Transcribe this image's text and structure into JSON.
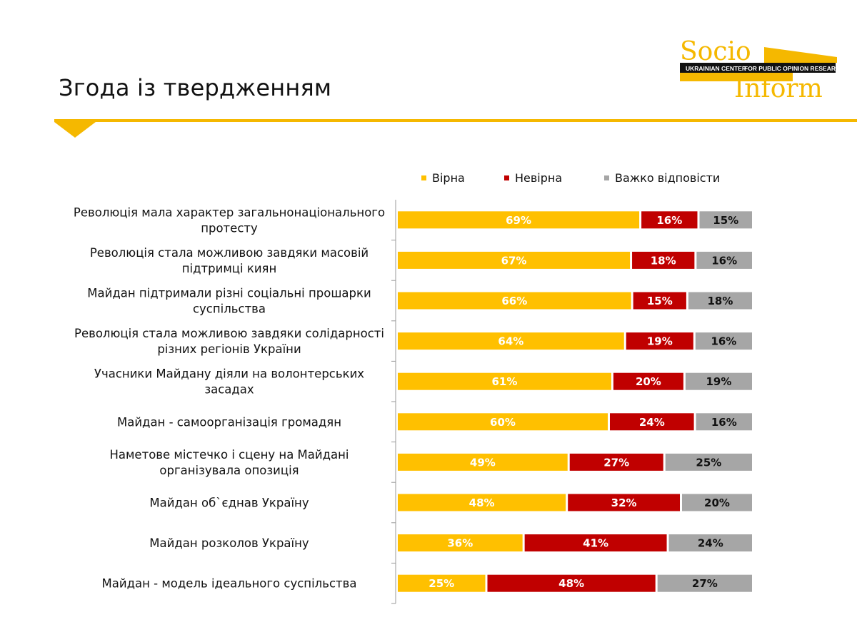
{
  "slide": {
    "title": "Згода із твердженням"
  },
  "logo": {
    "word_top": "Socio",
    "word_bottom": "Inform",
    "tagline_left": "UKRAINIAN CENTER",
    "tagline_right": "FOR PUBLIC OPINION RESEARCH"
  },
  "colors": {
    "accent": "#f5b800",
    "series": [
      "#ffc000",
      "#c00000",
      "#a6a6a6"
    ],
    "value_text": [
      "#ffffff",
      "#ffffff",
      "#111111"
    ]
  },
  "chart_data": {
    "type": "bar",
    "orientation": "horizontal",
    "stacked": true,
    "legend_position": "top",
    "xlim": [
      0,
      100
    ],
    "value_format": "percent",
    "categories": [
      [
        "Революція мала характер загальнонаціонального",
        "протесту"
      ],
      [
        "Революція стала можливою завдяки масовій",
        "підтримці киян"
      ],
      [
        "Майдан підтримали різні соціальні прошарки",
        "суспільства"
      ],
      [
        "Революція стала можливою завдяки солідарності",
        "різних регіонів України"
      ],
      [
        "Учасники Майдану діяли на волонтерських",
        "засадах"
      ],
      [
        "Майдан - самоорганізація громадян"
      ],
      [
        "Наметове містечко і сцену на Майдані",
        "організувала опозиція"
      ],
      [
        "Майдан об`єднав Україну"
      ],
      [
        "Майдан розколов Україну"
      ],
      [
        "Майдан - модель ідеального суспільства"
      ]
    ],
    "series": [
      {
        "name": "Вірна",
        "values": [
          69,
          67,
          66,
          64,
          61,
          60,
          49,
          48,
          36,
          25
        ]
      },
      {
        "name": "Невірна",
        "values": [
          16,
          18,
          15,
          19,
          20,
          24,
          27,
          32,
          41,
          48
        ]
      },
      {
        "name": "Важко відповісти",
        "values": [
          15,
          16,
          18,
          16,
          19,
          16,
          25,
          20,
          24,
          27
        ]
      }
    ]
  }
}
